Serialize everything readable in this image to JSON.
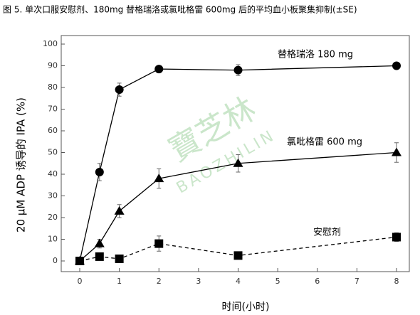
{
  "chart_data": {
    "type": "line",
    "title": "图 5. 单次口服安慰剂、180mg 替格瑞洛或氯吡格雷 600mg 后的平均血小板聚集抑制(±SE)",
    "y_label": "20 μM ADP 诱导的 IPA (%)",
    "x_label": "时间(小时)",
    "watermark": {
      "text": "寶芝林",
      "latin": "BAOZHILIN"
    },
    "x": [
      0,
      0.5,
      1,
      2,
      4,
      8
    ],
    "series": [
      {
        "name": "替格瑞洛   180 mg",
        "color": "#000000",
        "marker": "circle",
        "linestyle": "solid",
        "values": [
          0,
          41,
          79,
          88.5,
          88,
          90
        ],
        "errors": [
          0,
          4,
          3,
          1.5,
          2.5,
          1
        ]
      },
      {
        "name": "氯吡格雷   600 mg",
        "color": "#000000",
        "marker": "triangle",
        "linestyle": "solid",
        "values": [
          0,
          8,
          23,
          38,
          45,
          50
        ],
        "errors": [
          0,
          2,
          3,
          4.5,
          4,
          4.5
        ]
      },
      {
        "name": "安慰剂",
        "color": "#000000",
        "marker": "square",
        "linestyle": "dashed",
        "values": [
          0,
          2,
          1,
          8,
          2.5,
          11
        ],
        "errors": [
          0,
          1,
          1,
          3.5,
          1,
          2
        ]
      }
    ],
    "xlim": [
      0,
      8
    ],
    "xticks": [
      0,
      1,
      2,
      3,
      4,
      5,
      6,
      7,
      8
    ],
    "ylim": [
      0,
      100
    ],
    "yticks": [
      0,
      10,
      20,
      30,
      40,
      50,
      60,
      70,
      80,
      90,
      100
    ]
  }
}
